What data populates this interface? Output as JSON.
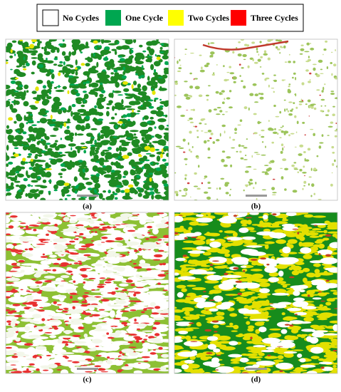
{
  "legend": {
    "items": [
      {
        "label": "No Cycles",
        "color": "#ffffff"
      },
      {
        "label": "One Cycle",
        "color": "#00a650"
      },
      {
        "label": "Two Cycles",
        "color": "#ffff00"
      },
      {
        "label": "Three Cycles",
        "color": "#ff0000"
      }
    ]
  },
  "panels": [
    {
      "label": "(a)"
    },
    {
      "label": "(b)"
    },
    {
      "label": "(c)"
    },
    {
      "label": "(d)"
    }
  ]
}
